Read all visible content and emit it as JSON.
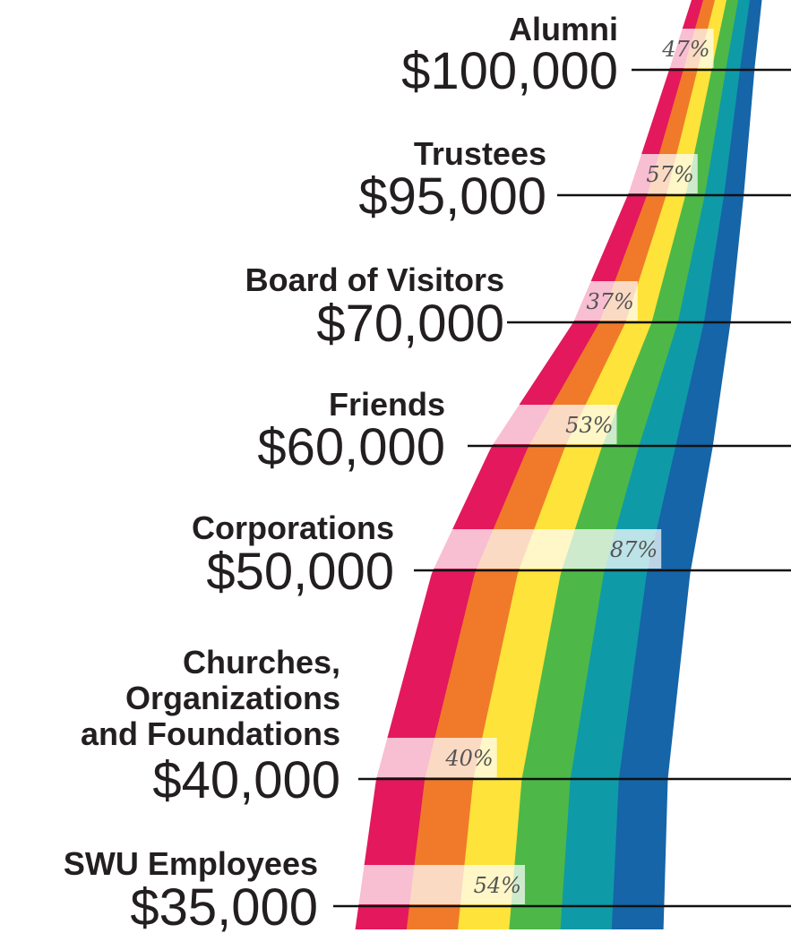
{
  "items": [
    {
      "label_lines": [
        "Alumni"
      ],
      "goal": "$100,000",
      "progress": 47,
      "progress_label": "47%"
    },
    {
      "label_lines": [
        "Trustees"
      ],
      "goal": "$95,000",
      "progress": 57,
      "progress_label": "57%"
    },
    {
      "label_lines": [
        "Board of Visitors"
      ],
      "goal": "$70,000",
      "progress": 37,
      "progress_label": "37%"
    },
    {
      "label_lines": [
        "Friends"
      ],
      "goal": "$60,000",
      "progress": 53,
      "progress_label": "53%"
    },
    {
      "label_lines": [
        "Corporations"
      ],
      "goal": "$50,000",
      "progress": 87,
      "progress_label": "87%"
    },
    {
      "label_lines": [
        "Churches,",
        "Organizations",
        "and Foundations"
      ],
      "goal": "$40,000",
      "progress": 40,
      "progress_label": "40%"
    },
    {
      "label_lines": [
        "SWU Employees"
      ],
      "goal": "$35,000",
      "progress": 54,
      "progress_label": "54%"
    }
  ]
}
